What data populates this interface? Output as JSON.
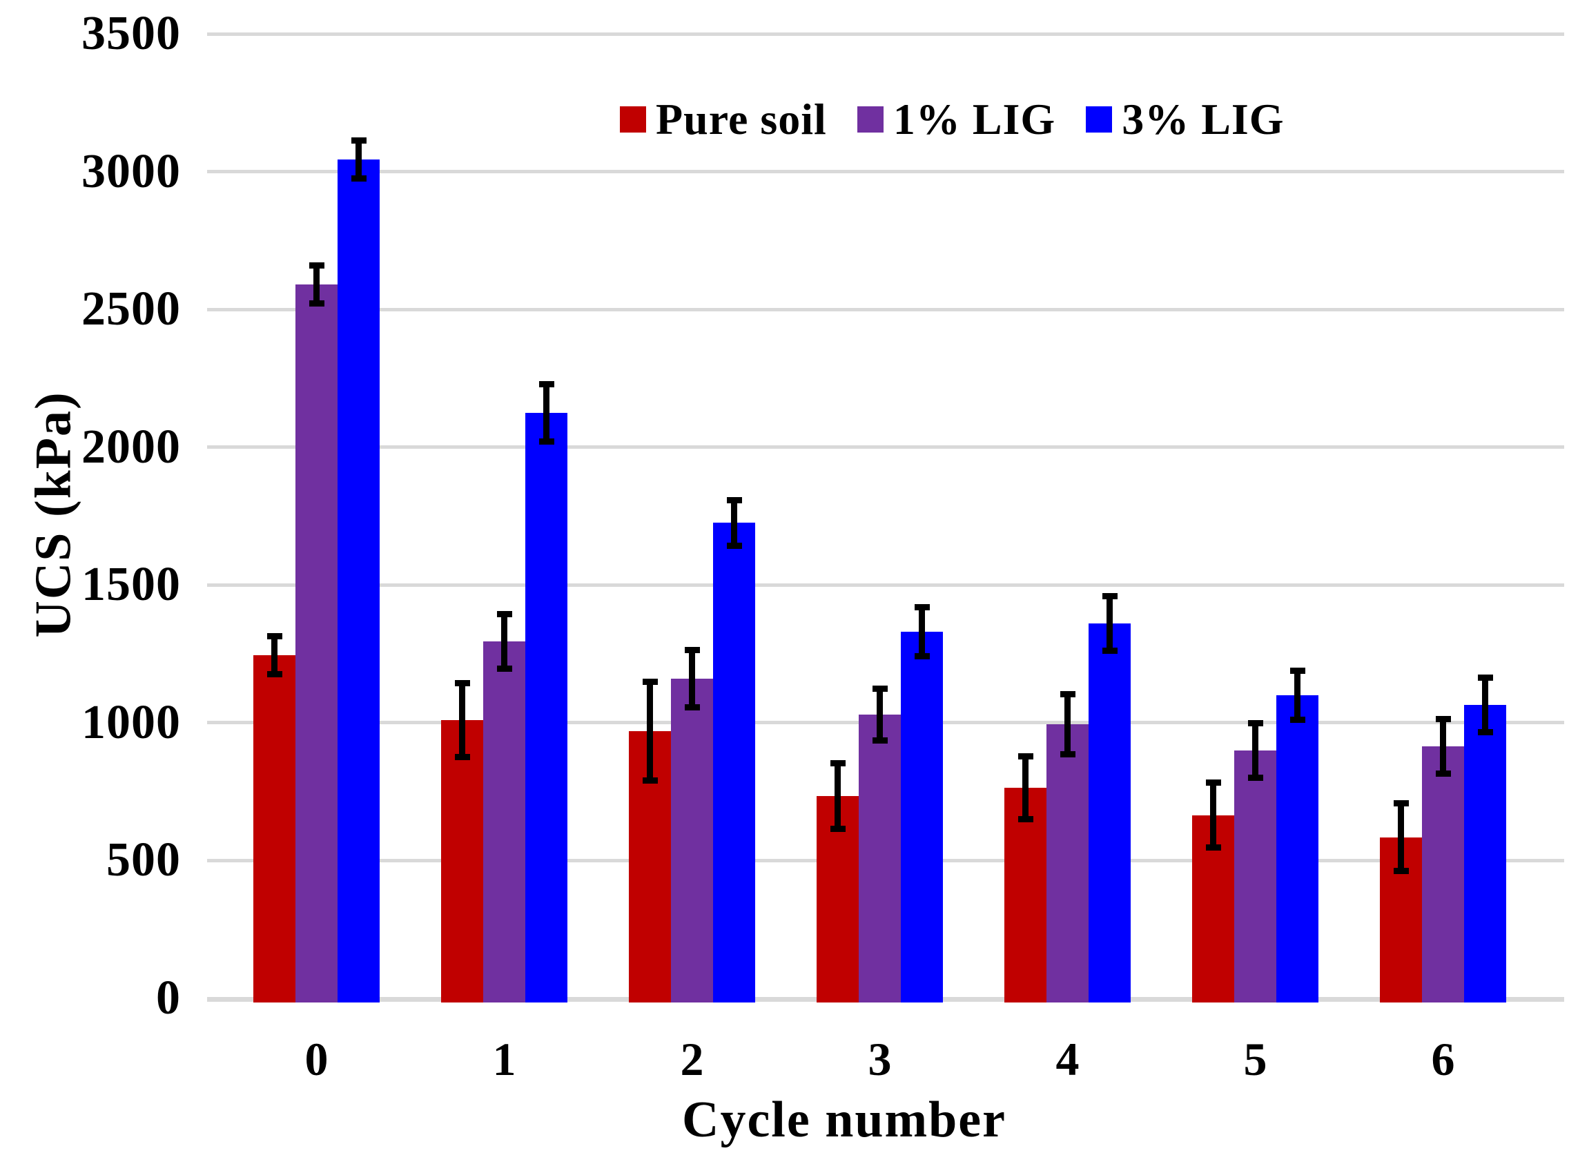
{
  "chart_data": {
    "type": "bar",
    "xlabel": "Cycle number",
    "ylabel": "UCS (kPa)",
    "categories": [
      "0",
      "1",
      "2",
      "3",
      "4",
      "5",
      "6"
    ],
    "y_ticks": [
      0,
      500,
      1000,
      1500,
      2000,
      2500,
      3000,
      3500
    ],
    "ylim": [
      0,
      3500
    ],
    "grid": "horizontal",
    "gridline_color": "#D9D9D9",
    "error_bar_color": "#000000",
    "legend_position": "top-center-inside",
    "series": [
      {
        "name": "Pure soil",
        "color": "#C00000",
        "values": [
          1245,
          1010,
          970,
          735,
          765,
          665,
          585
        ],
        "errors": [
          70,
          135,
          180,
          120,
          115,
          120,
          125
        ]
      },
      {
        "name": "1% LIG",
        "color": "#7030A0",
        "values": [
          2590,
          1295,
          1160,
          1030,
          995,
          900,
          915
        ],
        "errors": [
          70,
          100,
          105,
          95,
          110,
          100,
          100
        ]
      },
      {
        "name": "3% LIG",
        "color": "#0000FF",
        "values": [
          3045,
          2125,
          1725,
          1330,
          1360,
          1100,
          1065
        ],
        "errors": [
          70,
          105,
          85,
          90,
          100,
          90,
          100
        ]
      }
    ]
  }
}
